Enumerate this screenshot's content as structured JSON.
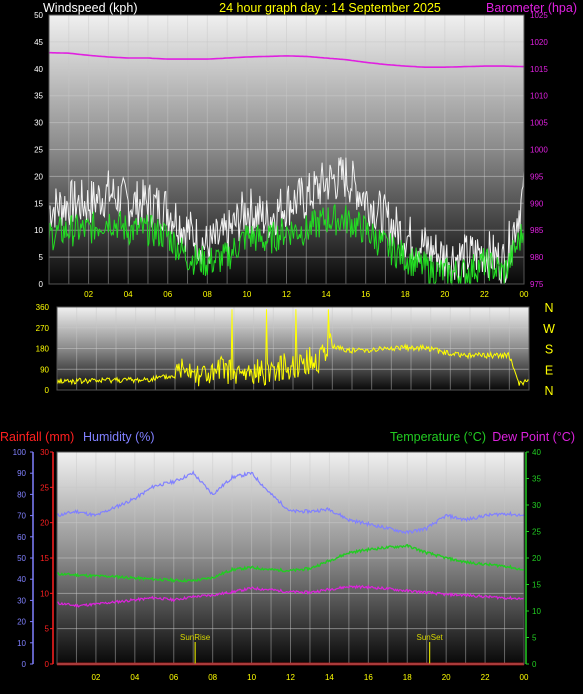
{
  "header": {
    "left": "Windspeed (kph)",
    "center": "24 hour graph day : 14 September 2025",
    "right": "Barometer (hpa)"
  },
  "colors": {
    "wind_avg": "#22dd22",
    "wind_gust": "#f2f2f2",
    "barometer": "#e020e0",
    "direction": "#ffff00",
    "rainfall": "#ff2020",
    "humidity": "#8080ff",
    "temperature": "#22cc22",
    "dewpoint": "#dd22dd",
    "sun_marker": "#d8d800"
  },
  "time_ticks": [
    "02",
    "04",
    "06",
    "08",
    "10",
    "12",
    "14",
    "16",
    "18",
    "20",
    "22",
    "00"
  ],
  "chart_data": [
    {
      "type": "line",
      "title": "24 hour graph day : 14 September 2025",
      "ylabel": "Windspeed (kph)",
      "y2label": "Barometer (hpa)",
      "ylim": [
        0,
        50
      ],
      "y2lim": [
        975,
        1025
      ],
      "y_ticks": [
        "0",
        "5",
        "10",
        "15",
        "20",
        "25",
        "30",
        "35",
        "40",
        "45",
        "50"
      ],
      "y2_ticks": [
        "975",
        "980",
        "985",
        "990",
        "995",
        "1000",
        "1005",
        "1010",
        "1015",
        "1020",
        "1025"
      ],
      "x_hours": [
        0,
        1,
        2,
        3,
        4,
        5,
        6,
        7,
        8,
        9,
        10,
        11,
        12,
        13,
        14,
        15,
        16,
        17,
        18,
        19,
        20,
        21,
        22,
        23,
        24
      ],
      "series": [
        {
          "name": "Windspeed",
          "axis": "left",
          "values": [
            9,
            10,
            10,
            12,
            10,
            10,
            9,
            5,
            4,
            5,
            9,
            8,
            10,
            10,
            12,
            12,
            10,
            7,
            5,
            3,
            2,
            2,
            4,
            2,
            10
          ]
        },
        {
          "name": "Gust",
          "axis": "left",
          "values": [
            14,
            15,
            15,
            17,
            15,
            15,
            14,
            10,
            7,
            9,
            14,
            12,
            15,
            16,
            19,
            20,
            16,
            12,
            9,
            7,
            5,
            5,
            6,
            4,
            17
          ]
        },
        {
          "name": "Barometer",
          "axis": "right",
          "values": [
            1018,
            1017.9,
            1017.5,
            1017.2,
            1017,
            1017,
            1016.8,
            1016.8,
            1016.8,
            1017,
            1017.2,
            1017.3,
            1017.4,
            1017.3,
            1017,
            1016.7,
            1016.2,
            1015.8,
            1015.5,
            1015.3,
            1015.3,
            1015.4,
            1015.5,
            1015.5,
            1015.4
          ]
        }
      ]
    },
    {
      "type": "scatter",
      "ylim": [
        0,
        360
      ],
      "y_ticks": [
        "0",
        "90",
        "180",
        "270",
        "360"
      ],
      "compass_ticks": [
        "N",
        "E",
        "S",
        "W",
        "N"
      ],
      "series": [
        {
          "name": "Wind Direction",
          "x_hours": [
            0,
            1,
            2,
            3,
            4,
            5,
            6,
            6.5,
            7,
            7.5,
            8,
            8.5,
            9,
            10,
            11,
            12,
            13,
            13.3,
            13.5,
            14,
            15,
            16,
            17,
            18,
            19,
            20,
            21,
            22,
            23,
            23.5,
            24
          ],
          "values": [
            40,
            38,
            40,
            45,
            42,
            50,
            60,
            120,
            80,
            70,
            60,
            100,
            60,
            70,
            90,
            110,
            130,
            120,
            180,
            190,
            170,
            175,
            180,
            185,
            180,
            155,
            150,
            150,
            150,
            30,
            35
          ]
        }
      ]
    },
    {
      "type": "line",
      "y_rain_lim": [
        0,
        30
      ],
      "y_hum_lim": [
        0,
        100
      ],
      "y_temp_lim": [
        0,
        40
      ],
      "rain_ticks": [
        "0",
        "5",
        "10",
        "15",
        "20",
        "25",
        "30"
      ],
      "humidity_ticks": [
        "0",
        "10",
        "20",
        "30",
        "40",
        "50",
        "60",
        "70",
        "80",
        "90",
        "100"
      ],
      "temperature_ticks": [
        "0",
        "5",
        "10",
        "15",
        "20",
        "25",
        "30",
        "35",
        "40"
      ],
      "labels": {
        "rainfall": "Rainfall (mm)",
        "humidity": "Humidity (%)",
        "temperature": "Temperature (°C)",
        "dewpoint": "Dew Point (°C)",
        "sunrise": "SunRise",
        "sunset": "SunSet"
      },
      "sunrise_hour": 7.1,
      "sunset_hour": 19.15,
      "x_hours": [
        0,
        1,
        2,
        3,
        4,
        5,
        6,
        7,
        8,
        9,
        10,
        11,
        12,
        13,
        14,
        15,
        16,
        17,
        18,
        19,
        20,
        21,
        22,
        23,
        24
      ],
      "series": [
        {
          "name": "Rainfall",
          "axis": "rain",
          "values": [
            0,
            0,
            0,
            0,
            0,
            0,
            0,
            0,
            0,
            0,
            0,
            0,
            0,
            0,
            0,
            0,
            0,
            0,
            0,
            0,
            0,
            0,
            0,
            0,
            0
          ]
        },
        {
          "name": "Humidity",
          "axis": "hum",
          "values": [
            70,
            72,
            70,
            74,
            78,
            84,
            86,
            90,
            80,
            88,
            90,
            80,
            72,
            72,
            73,
            68,
            66,
            64,
            62,
            64,
            70,
            68,
            70,
            71,
            70
          ]
        },
        {
          "name": "Temperature",
          "axis": "temp",
          "values": [
            17,
            16.8,
            16.6,
            16.5,
            16.2,
            16,
            15.8,
            15.7,
            16.3,
            17.8,
            18.2,
            17.8,
            17.6,
            18,
            19.5,
            21,
            21.6,
            22,
            22.3,
            21,
            20,
            19.2,
            18.8,
            18.5,
            17.7
          ]
        },
        {
          "name": "Dew Point",
          "axis": "temp",
          "values": [
            11.5,
            11,
            11.3,
            11.7,
            12.1,
            12.5,
            12.1,
            12.7,
            13,
            13.6,
            14.3,
            14,
            13.6,
            13.5,
            14.1,
            14.6,
            14.5,
            14.2,
            13.8,
            13.5,
            13.1,
            13,
            12.7,
            12.5,
            12.3
          ]
        }
      ]
    }
  ]
}
